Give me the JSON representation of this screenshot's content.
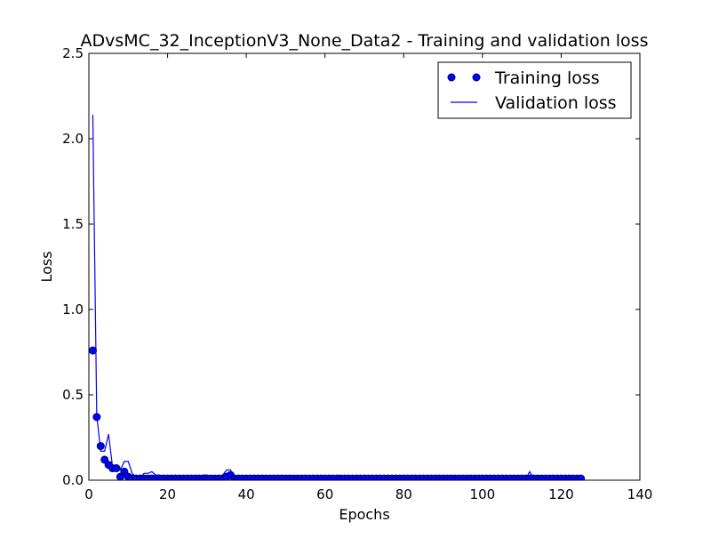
{
  "chart_data": {
    "type": "line",
    "title": "ADvsMC_32_InceptionV3_None_Data2 - Training and validation loss",
    "xlabel": "Epochs",
    "ylabel": "Loss",
    "xlim": [
      0,
      140
    ],
    "ylim": [
      0,
      2.5
    ],
    "xticks": [
      "0",
      "20",
      "40",
      "60",
      "80",
      "100",
      "120",
      "140"
    ],
    "yticks": [
      "0.0",
      "0.5",
      "1.0",
      "1.5",
      "2.0",
      "2.5"
    ],
    "xtick_values": [
      0,
      20,
      40,
      60,
      80,
      100,
      120,
      140
    ],
    "ytick_values": [
      0,
      0.5,
      1.0,
      1.5,
      2.0,
      2.5
    ],
    "grid": false,
    "legend_position": "top-right",
    "series": [
      {
        "name": "Training loss",
        "style": "markers",
        "color": "#0000ff",
        "x": [
          1,
          2,
          3,
          4,
          5,
          6,
          7,
          8,
          9,
          10,
          11,
          12,
          13,
          14,
          15,
          16,
          17,
          18,
          19,
          20,
          21,
          22,
          23,
          24,
          25,
          26,
          27,
          28,
          29,
          30,
          31,
          32,
          33,
          34,
          35,
          36,
          37,
          38,
          39,
          40,
          41,
          42,
          43,
          44,
          45,
          46,
          47,
          48,
          49,
          50,
          51,
          52,
          53,
          54,
          55,
          56,
          57,
          58,
          59,
          60,
          61,
          62,
          63,
          64,
          65,
          66,
          67,
          68,
          69,
          70,
          71,
          72,
          73,
          74,
          75,
          76,
          77,
          78,
          79,
          80,
          81,
          82,
          83,
          84,
          85,
          86,
          87,
          88,
          89,
          90,
          91,
          92,
          93,
          94,
          95,
          96,
          97,
          98,
          99,
          100,
          101,
          102,
          103,
          104,
          105,
          106,
          107,
          108,
          109,
          110,
          111,
          112,
          113,
          114,
          115,
          116,
          117,
          118,
          119,
          120,
          121,
          122,
          123,
          124,
          125
        ],
        "values": [
          0.76,
          0.37,
          0.2,
          0.12,
          0.09,
          0.07,
          0.07,
          0.02,
          0.05,
          0.02,
          0.01,
          0.01,
          0.01,
          0.01,
          0.01,
          0.01,
          0.01,
          0.01,
          0.01,
          0.01,
          0.01,
          0.01,
          0.01,
          0.01,
          0.01,
          0.01,
          0.01,
          0.01,
          0.01,
          0.01,
          0.01,
          0.01,
          0.01,
          0.01,
          0.02,
          0.03,
          0.01,
          0.01,
          0.01,
          0.01,
          0.01,
          0.01,
          0.01,
          0.01,
          0.01,
          0.01,
          0.01,
          0.01,
          0.01,
          0.01,
          0.01,
          0.01,
          0.01,
          0.01,
          0.01,
          0.01,
          0.01,
          0.01,
          0.01,
          0.01,
          0.01,
          0.01,
          0.01,
          0.01,
          0.01,
          0.01,
          0.01,
          0.01,
          0.01,
          0.01,
          0.01,
          0.01,
          0.01,
          0.01,
          0.01,
          0.01,
          0.01,
          0.01,
          0.01,
          0.01,
          0.01,
          0.01,
          0.01,
          0.01,
          0.01,
          0.01,
          0.01,
          0.01,
          0.01,
          0.01,
          0.01,
          0.01,
          0.01,
          0.01,
          0.01,
          0.01,
          0.01,
          0.01,
          0.01,
          0.01,
          0.01,
          0.01,
          0.01,
          0.01,
          0.01,
          0.01,
          0.01,
          0.01,
          0.01,
          0.01,
          0.01,
          0.01,
          0.01,
          0.01,
          0.01,
          0.01,
          0.01,
          0.01,
          0.01,
          0.01,
          0.01,
          0.01,
          0.01,
          0.01,
          0.01
        ]
      },
      {
        "name": "Validation loss",
        "style": "line",
        "color": "#0000ff",
        "x": [
          1,
          2,
          3,
          4,
          5,
          6,
          7,
          8,
          9,
          10,
          11,
          12,
          13,
          14,
          15,
          16,
          17,
          18,
          19,
          20,
          21,
          22,
          23,
          24,
          25,
          26,
          27,
          28,
          29,
          30,
          31,
          32,
          33,
          34,
          35,
          36,
          37,
          38,
          39,
          40,
          41,
          42,
          43,
          44,
          45,
          46,
          47,
          48,
          49,
          50,
          51,
          52,
          53,
          54,
          55,
          56,
          57,
          58,
          59,
          60,
          61,
          62,
          63,
          64,
          65,
          66,
          67,
          68,
          69,
          70,
          71,
          72,
          73,
          74,
          75,
          76,
          77,
          78,
          79,
          80,
          81,
          82,
          83,
          84,
          85,
          86,
          87,
          88,
          89,
          90,
          91,
          92,
          93,
          94,
          95,
          96,
          97,
          98,
          99,
          100,
          101,
          102,
          103,
          104,
          105,
          106,
          107,
          108,
          109,
          110,
          111,
          112,
          113,
          114,
          115,
          116,
          117,
          118,
          119,
          120,
          121,
          122,
          123,
          124,
          125
        ],
        "values": [
          2.14,
          0.38,
          0.17,
          0.17,
          0.27,
          0.08,
          0.08,
          0.06,
          0.11,
          0.11,
          0.04,
          0.02,
          0.01,
          0.04,
          0.04,
          0.05,
          0.03,
          0.03,
          0.01,
          0.01,
          0.02,
          0.03,
          0.01,
          0.01,
          0.01,
          0.01,
          0.01,
          0.01,
          0.03,
          0.03,
          0.02,
          0.02,
          0.02,
          0.03,
          0.06,
          0.06,
          0.01,
          0.01,
          0.01,
          0.01,
          0.01,
          0.01,
          0.01,
          0.01,
          0.01,
          0.01,
          0.01,
          0.01,
          0.01,
          0.01,
          0.01,
          0.01,
          0.02,
          0.01,
          0.01,
          0.01,
          0.01,
          0.01,
          0.01,
          0.01,
          0.01,
          0.01,
          0.01,
          0.01,
          0.01,
          0.01,
          0.01,
          0.01,
          0.01,
          0.01,
          0.01,
          0.01,
          0.01,
          0.01,
          0.01,
          0.01,
          0.01,
          0.01,
          0.01,
          0.01,
          0.01,
          0.01,
          0.01,
          0.01,
          0.01,
          0.01,
          0.01,
          0.01,
          0.01,
          0.01,
          0.01,
          0.01,
          0.01,
          0.01,
          0.01,
          0.01,
          0.01,
          0.01,
          0.01,
          0.01,
          0.01,
          0.01,
          0.01,
          0.01,
          0.01,
          0.01,
          0.01,
          0.01,
          0.01,
          0.01,
          0.01,
          0.05,
          0.01,
          0.01,
          0.01,
          0.01,
          0.01,
          0.01,
          0.01,
          0.01,
          0.01,
          0.01,
          0.01,
          0.01,
          0.01
        ]
      }
    ]
  }
}
